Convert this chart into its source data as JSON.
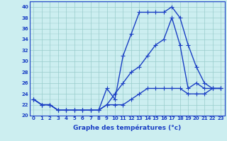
{
  "xlabel": "Graphe des températures (°c)",
  "x": [
    0,
    1,
    2,
    3,
    4,
    5,
    6,
    7,
    8,
    9,
    10,
    11,
    12,
    13,
    14,
    15,
    16,
    17,
    18,
    19,
    20,
    21,
    22,
    23
  ],
  "series1": [
    23,
    22,
    22,
    21,
    21,
    21,
    21,
    21,
    21,
    25,
    23,
    31,
    35,
    39,
    39,
    39,
    39,
    40,
    38,
    33,
    29,
    26,
    25,
    25
  ],
  "series2": [
    23,
    22,
    22,
    21,
    21,
    21,
    21,
    21,
    21,
    22,
    24,
    26,
    28,
    29,
    31,
    33,
    34,
    38,
    33,
    25,
    26,
    25,
    25,
    25
  ],
  "series3": [
    23,
    22,
    22,
    21,
    21,
    21,
    21,
    21,
    21,
    22,
    22,
    22,
    23,
    24,
    25,
    25,
    25,
    25,
    25,
    24,
    24,
    24,
    25,
    25
  ],
  "ylim": [
    20,
    41
  ],
  "yticks": [
    20,
    22,
    24,
    26,
    28,
    30,
    32,
    34,
    36,
    38,
    40
  ],
  "xlim": [
    -0.5,
    23.5
  ],
  "bg_color": "#cceef0",
  "line_color": "#1a3fc4",
  "grid_color": "#99cccc",
  "label_color": "#1a3fc4",
  "marker": "+",
  "markersize": 4,
  "linewidth": 1.0,
  "tick_fontsize": 5,
  "xlabel_fontsize": 6.5
}
